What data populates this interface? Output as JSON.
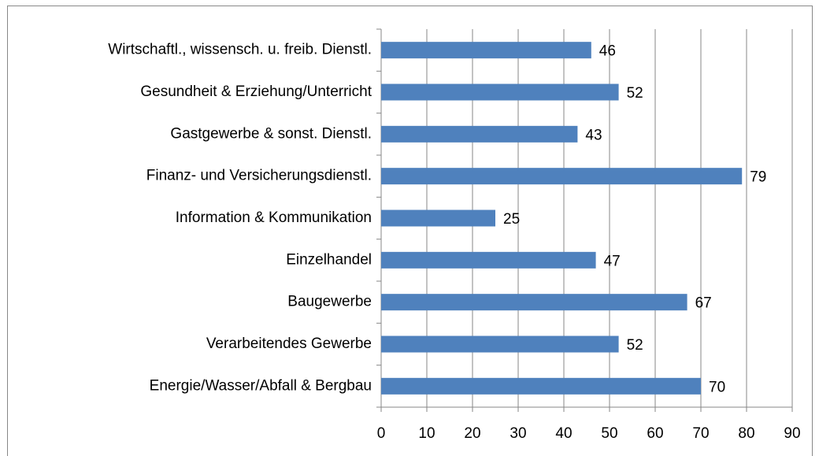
{
  "chart_data": {
    "type": "bar",
    "orientation": "horizontal",
    "categories": [
      "Wirtschaftl., wissensch. u. freib. Dienstl.",
      "Gesundheit & Erziehung/Unterricht",
      "Gastgewerbe & sonst. Dienstl.",
      "Finanz- und Versicherungsdienstl.",
      "Information & Kommunikation",
      "Einzelhandel",
      "Baugewerbe",
      "Verarbeitendes Gewerbe",
      "Energie/Wasser/Abfall & Bergbau"
    ],
    "values": [
      46,
      52,
      43,
      79,
      25,
      47,
      67,
      52,
      70
    ],
    "color": "#4f81bd",
    "xlim": [
      0,
      90
    ],
    "xticks": [
      0,
      10,
      20,
      30,
      40,
      50,
      60,
      70,
      80,
      90
    ],
    "grid": true
  }
}
